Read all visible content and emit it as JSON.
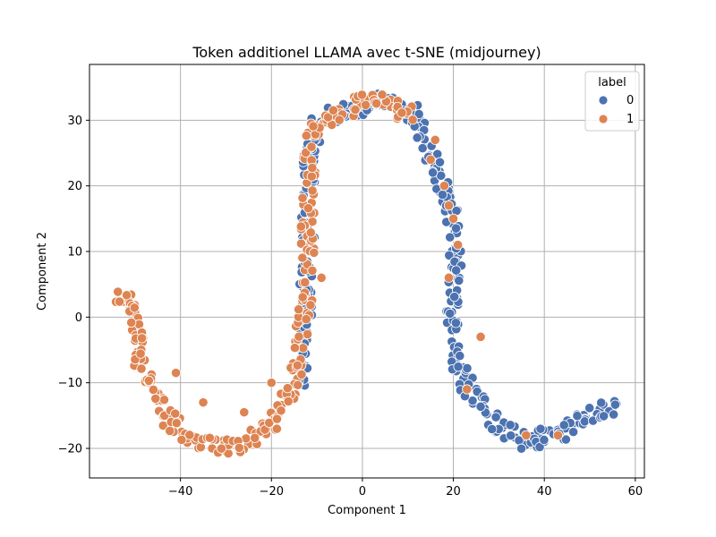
{
  "chart_data": {
    "type": "scatter",
    "title": "Token additionel LLAMA avec t-SNE (midjourney)",
    "xlabel": "Component 1",
    "ylabel": "Component 2",
    "xlim": [
      -60,
      62
    ],
    "ylim": [
      -24.5,
      38.5
    ],
    "xticks": [
      -40,
      -20,
      0,
      20,
      40,
      60
    ],
    "yticks": [
      -20,
      -10,
      0,
      10,
      20,
      30
    ],
    "xtick_labels": [
      "−40",
      "−20",
      "0",
      "20",
      "40",
      "60"
    ],
    "ytick_labels": [
      "−20",
      "−10",
      "0",
      "10",
      "20",
      "30"
    ],
    "grid": true,
    "legend": {
      "title": "label",
      "position": "top-right",
      "entries": [
        {
          "label": "0",
          "color": "#4c72b0"
        },
        {
          "label": "1",
          "color": "#dd8452"
        }
      ]
    },
    "series": [
      {
        "name": "0",
        "color": "#4c72b0",
        "path": [
          [
            -14,
            -12
          ],
          [
            -13,
            -6
          ],
          [
            -12.5,
            2
          ],
          [
            -12,
            10
          ],
          [
            -12,
            18
          ],
          [
            -11.5,
            25
          ],
          [
            -10,
            29
          ],
          [
            -7,
            30.5
          ],
          [
            -3,
            31.5
          ],
          [
            1,
            32.5
          ],
          [
            4,
            33
          ],
          [
            8,
            32
          ],
          [
            11,
            31
          ],
          [
            13,
            28
          ],
          [
            15,
            25
          ],
          [
            17,
            21
          ],
          [
            19,
            17
          ],
          [
            20,
            13
          ],
          [
            20.5,
            9
          ],
          [
            20.5,
            5
          ],
          [
            20,
            1
          ],
          [
            20,
            -3
          ],
          [
            21,
            -6.5
          ],
          [
            23,
            -10
          ],
          [
            26,
            -13
          ],
          [
            29,
            -16
          ],
          [
            33,
            -18
          ],
          [
            37,
            -19
          ],
          [
            41,
            -18
          ],
          [
            44,
            -17.5
          ],
          [
            47,
            -16
          ],
          [
            50,
            -15
          ],
          [
            53,
            -14
          ],
          [
            56,
            -13
          ]
        ]
      },
      {
        "name": "1",
        "color": "#dd8452",
        "path": [
          [
            -54,
            4
          ],
          [
            -51,
            2
          ],
          [
            -50,
            -2
          ],
          [
            -49,
            -6
          ],
          [
            -47,
            -9
          ],
          [
            -45,
            -12
          ],
          [
            -43,
            -15
          ],
          [
            -40,
            -17
          ],
          [
            -37,
            -18.5
          ],
          [
            -34,
            -19.5
          ],
          [
            -31,
            -20
          ],
          [
            -28,
            -19.5
          ],
          [
            -25,
            -18.5
          ],
          [
            -21,
            -17
          ],
          [
            -18,
            -14
          ],
          [
            -15,
            -10
          ],
          [
            -14,
            -5
          ],
          [
            -13,
            0
          ],
          [
            -12,
            5
          ],
          [
            -12,
            12
          ],
          [
            -12,
            19
          ],
          [
            -11.5,
            25
          ],
          [
            -10,
            29
          ],
          [
            -7,
            30.5
          ],
          [
            -3,
            31.5
          ],
          [
            0,
            33
          ],
          [
            3,
            33
          ],
          [
            7,
            32
          ],
          [
            11,
            31
          ]
        ],
        "extra": [
          [
            -41,
            -8.5
          ],
          [
            -35,
            -13
          ],
          [
            -26,
            -14.5
          ],
          [
            -20,
            -10
          ],
          [
            -9,
            6
          ],
          [
            19,
            17
          ],
          [
            18,
            20
          ],
          [
            20,
            15
          ],
          [
            21,
            11
          ],
          [
            19,
            6
          ],
          [
            26,
            -3
          ],
          [
            23,
            -11
          ],
          [
            36,
            -18
          ],
          [
            43,
            -18
          ],
          [
            15,
            24
          ],
          [
            16,
            27
          ]
        ]
      }
    ]
  }
}
